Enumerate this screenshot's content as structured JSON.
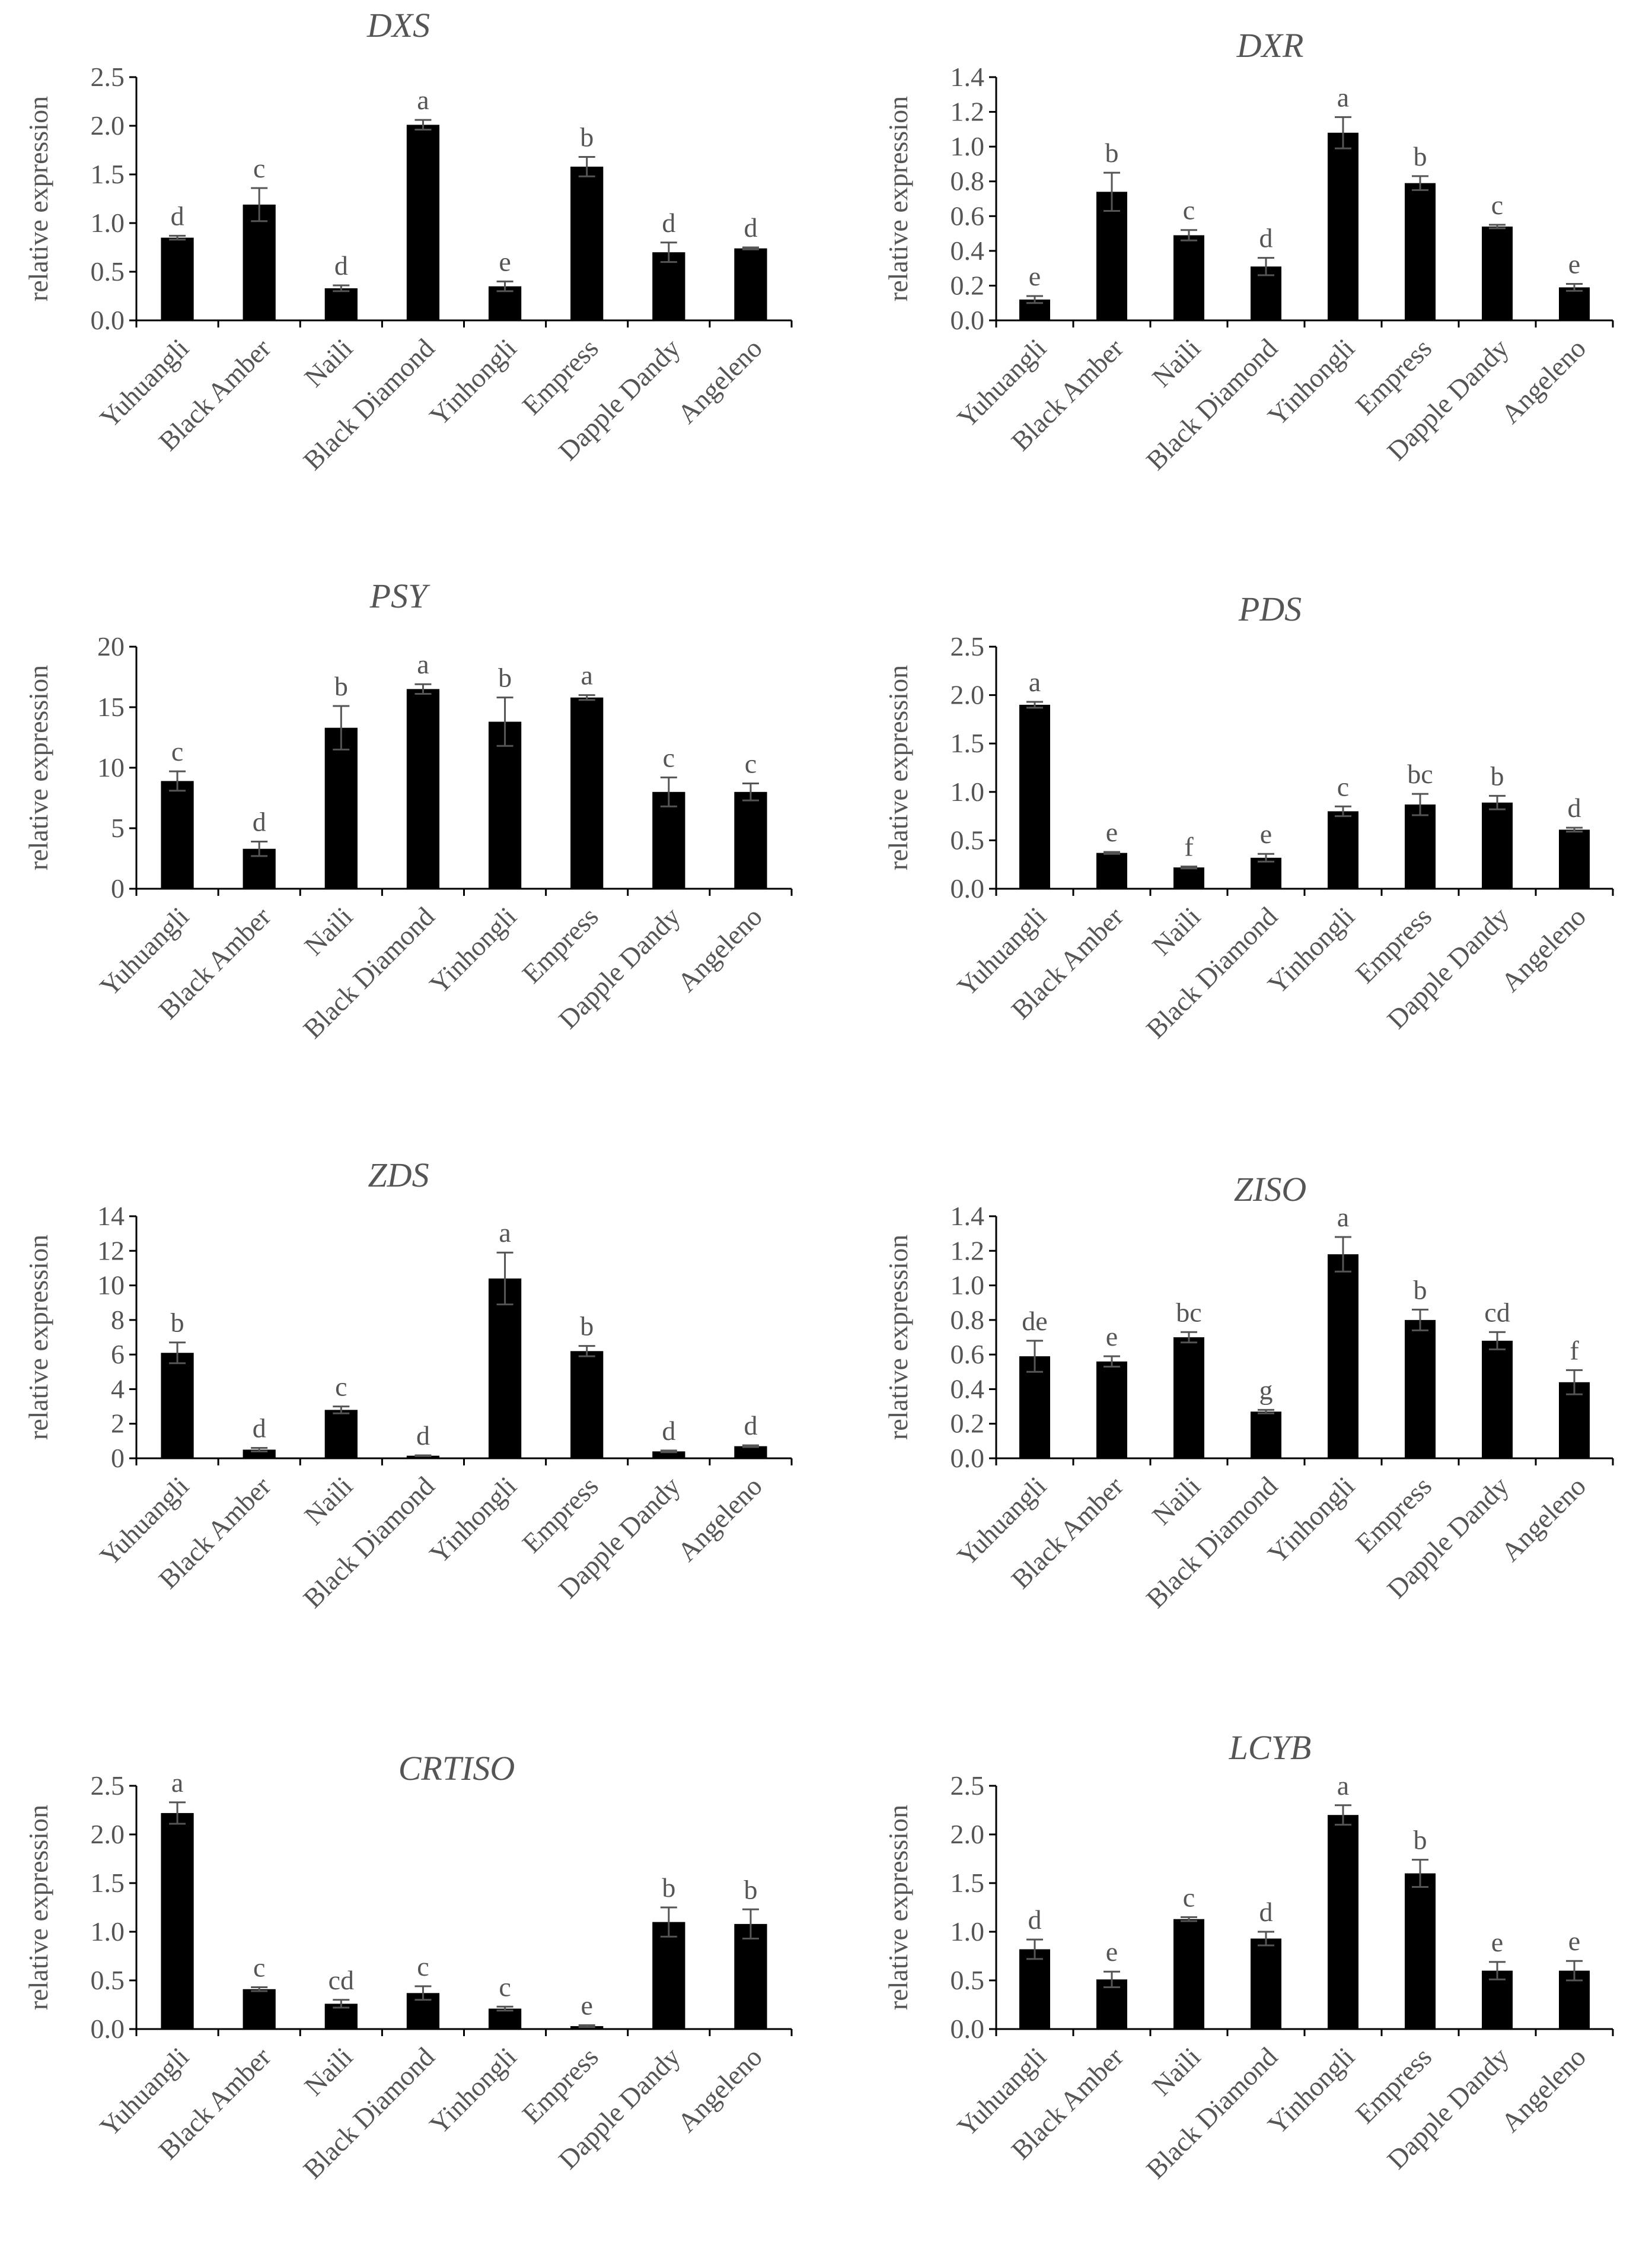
{
  "chart_data": [
    {
      "type": "bar",
      "title": "DXS",
      "ylabel": "relative expression",
      "categories": [
        "Yuhuangli",
        "Black Amber",
        "Naili",
        "Black Diamond",
        "Yinhongli",
        "Empress",
        "Dapple Dandy",
        "Angeleno"
      ],
      "values": [
        0.85,
        1.19,
        0.33,
        2.01,
        0.35,
        1.58,
        0.7,
        0.74
      ],
      "errors": [
        0.02,
        0.17,
        0.03,
        0.05,
        0.05,
        0.1,
        0.1,
        0.01
      ],
      "significance": [
        "d",
        "c",
        "d",
        "a",
        "e",
        "b",
        "d",
        "d"
      ],
      "ylim": [
        0,
        2.5
      ],
      "yticks": [
        "0.0",
        "0.5",
        "1.0",
        "1.5",
        "2.0",
        "2.5"
      ]
    },
    {
      "type": "bar",
      "title": "DXR",
      "ylabel": "relative expression",
      "categories": [
        "Yuhuangli",
        "Black Amber",
        "Naili",
        "Black Diamond",
        "Yinhongli",
        "Empress",
        "Dapple Dandy",
        "Angeleno"
      ],
      "values": [
        0.12,
        0.74,
        0.49,
        0.31,
        1.08,
        0.79,
        0.54,
        0.19
      ],
      "errors": [
        0.02,
        0.11,
        0.03,
        0.05,
        0.09,
        0.04,
        0.01,
        0.02
      ],
      "significance": [
        "e",
        "b",
        "c",
        "d",
        "a",
        "b",
        "c",
        "e"
      ],
      "ylim": [
        0,
        1.4
      ],
      "yticks": [
        "0.0",
        "0.2",
        "0.4",
        "0.6",
        "0.8",
        "1.0",
        "1.2",
        "1.4"
      ]
    },
    {
      "type": "bar",
      "title": "PSY",
      "ylabel": "relative expression",
      "categories": [
        "Yuhuangli",
        "Black Amber",
        "Naili",
        "Black Diamond",
        "Yinhongli",
        "Empress",
        "Dapple Dandy",
        "Angeleno"
      ],
      "values": [
        8.9,
        3.3,
        13.3,
        16.5,
        13.8,
        15.8,
        8.0,
        8.0
      ],
      "errors": [
        0.8,
        0.6,
        1.8,
        0.4,
        2.0,
        0.2,
        1.2,
        0.7
      ],
      "significance": [
        "c",
        "d",
        "b",
        "a",
        "b",
        "a",
        "c",
        "c"
      ],
      "ylim": [
        0,
        20
      ],
      "yticks": [
        "0",
        "5",
        "10",
        "15",
        "20"
      ]
    },
    {
      "type": "bar",
      "title": "PDS",
      "ylabel": "relative expression",
      "categories": [
        "Yuhuangli",
        "Black Amber",
        "Naili",
        "Black Diamond",
        "Yinhongli",
        "Empress",
        "Dapple Dandy",
        "Angeleno"
      ],
      "values": [
        1.9,
        0.37,
        0.22,
        0.32,
        0.8,
        0.87,
        0.89,
        0.61
      ],
      "errors": [
        0.03,
        0.01,
        0.01,
        0.04,
        0.05,
        0.11,
        0.07,
        0.02
      ],
      "significance": [
        "a",
        "e",
        "f",
        "e",
        "c",
        "bc",
        "b",
        "d"
      ],
      "ylim": [
        0,
        2.5
      ],
      "yticks": [
        "0.0",
        "0.5",
        "1.0",
        "1.5",
        "2.0",
        "2.5"
      ]
    },
    {
      "type": "bar",
      "title": "ZDS",
      "ylabel": "relative expression",
      "categories": [
        "Yuhuangli",
        "Black Amber",
        "Naili",
        "Black Diamond",
        "Yinhongli",
        "Empress",
        "Dapple Dandy",
        "Angeleno"
      ],
      "values": [
        6.1,
        0.5,
        2.8,
        0.15,
        10.4,
        6.2,
        0.4,
        0.7
      ],
      "errors": [
        0.6,
        0.1,
        0.2,
        0.02,
        1.5,
        0.3,
        0.05,
        0.05
      ],
      "significance": [
        "b",
        "d",
        "c",
        "d",
        "a",
        "b",
        "d",
        "d"
      ],
      "ylim": [
        0,
        14
      ],
      "yticks": [
        "0",
        "2",
        "4",
        "6",
        "8",
        "10",
        "12",
        "14"
      ]
    },
    {
      "type": "bar",
      "title": "ZISO",
      "ylabel": "relative expression",
      "categories": [
        "Yuhuangli",
        "Black Amber",
        "Naili",
        "Black Diamond",
        "Yinhongli",
        "Empress",
        "Dapple Dandy",
        "Angeleno"
      ],
      "values": [
        0.59,
        0.56,
        0.7,
        0.27,
        1.18,
        0.8,
        0.68,
        0.44
      ],
      "errors": [
        0.09,
        0.03,
        0.03,
        0.01,
        0.1,
        0.06,
        0.05,
        0.07
      ],
      "significance": [
        "de",
        "e",
        "bc",
        "g",
        "a",
        "b",
        "cd",
        "f"
      ],
      "ylim": [
        0,
        1.4
      ],
      "yticks": [
        "0.0",
        "0.2",
        "0.4",
        "0.6",
        "0.8",
        "1.0",
        "1.2",
        "1.4"
      ]
    },
    {
      "type": "bar",
      "title": "CRTISO",
      "ylabel": "relative expression",
      "categories": [
        "Yuhuangli",
        "Black Amber",
        "Naili",
        "Black Diamond",
        "Yinhongli",
        "Empress",
        "Dapple Dandy",
        "Angeleno"
      ],
      "values": [
        2.22,
        0.41,
        0.26,
        0.37,
        0.21,
        0.03,
        1.1,
        1.08
      ],
      "errors": [
        0.11,
        0.02,
        0.04,
        0.07,
        0.02,
        0.01,
        0.15,
        0.15
      ],
      "significance": [
        "a",
        "c",
        "cd",
        "c",
        "c",
        "e",
        "b",
        "b"
      ],
      "ylim": [
        0,
        2.5
      ],
      "yticks": [
        "0.0",
        "0.5",
        "1.0",
        "1.5",
        "2.0",
        "2.5"
      ]
    },
    {
      "type": "bar",
      "title": "LCYB",
      "ylabel": "relative expression",
      "categories": [
        "Yuhuangli",
        "Black Amber",
        "Naili",
        "Black Diamond",
        "Yinhongli",
        "Empress",
        "Dapple Dandy",
        "Angeleno"
      ],
      "values": [
        0.82,
        0.51,
        1.13,
        0.93,
        2.2,
        1.6,
        0.6,
        0.6
      ],
      "errors": [
        0.1,
        0.08,
        0.02,
        0.07,
        0.1,
        0.14,
        0.09,
        0.1
      ],
      "significance": [
        "d",
        "e",
        "c",
        "d",
        "a",
        "b",
        "e",
        "e"
      ],
      "ylim": [
        0,
        2.5
      ],
      "yticks": [
        "0.0",
        "0.5",
        "1.0",
        "1.5",
        "2.0",
        "2.5"
      ]
    }
  ]
}
